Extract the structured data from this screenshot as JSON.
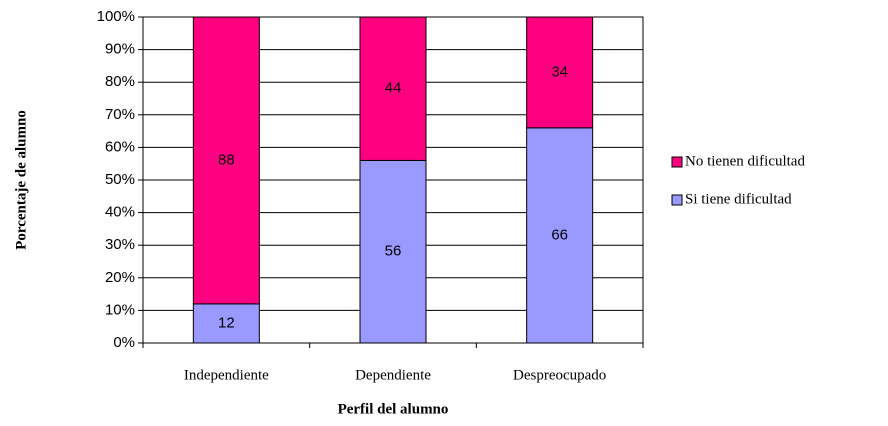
{
  "chart_data": {
    "type": "stacked_bar",
    "x_label": "Perfil del alumno",
    "y_label": "Porcentaje de alumno",
    "categories": [
      "Independiente",
      "Dependiente",
      "Despreocupado"
    ],
    "series": [
      {
        "name": "Si tiene dificultad",
        "color": "#9999ff",
        "values": [
          12,
          56,
          66
        ]
      },
      {
        "name": "No tienen dificultad",
        "color": "#ff0080",
        "values": [
          88,
          44,
          34
        ]
      }
    ],
    "ylim": [
      0,
      100
    ],
    "yticks": [
      {
        "value": 0,
        "label": "0%"
      },
      {
        "value": 10,
        "label": "10%"
      },
      {
        "value": 20,
        "label": "20%"
      },
      {
        "value": 30,
        "label": "30%"
      },
      {
        "value": 40,
        "label": "40%"
      },
      {
        "value": 50,
        "label": "50%"
      },
      {
        "value": 60,
        "label": "60%"
      },
      {
        "value": 70,
        "label": "70%"
      },
      {
        "value": 80,
        "label": "80%"
      },
      {
        "value": 90,
        "label": "90%"
      },
      {
        "value": 100,
        "label": "100%"
      }
    ],
    "grid": true,
    "legend": "right"
  }
}
